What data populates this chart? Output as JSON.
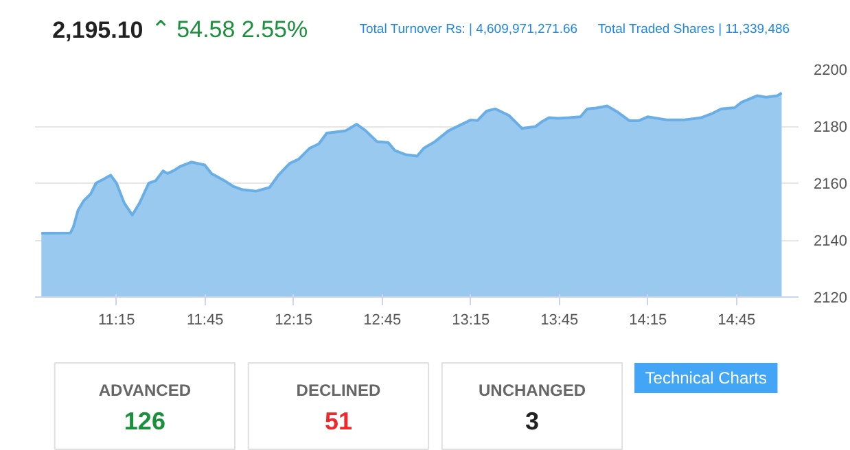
{
  "chart_data": [
    {
      "type": "area",
      "title": "2,195.10",
      "subtitle": "⌃ 54.58  2.55%",
      "annotations": [
        "Total Turnover Rs: | 4,609,971,271.66",
        "Total Traded Shares | 11,339,486"
      ],
      "x": [
        10.826,
        10.99,
        11.007,
        11.033,
        11.066,
        11.104,
        11.134,
        11.18,
        11.217,
        11.25,
        11.293,
        11.339,
        11.381,
        11.432,
        11.47,
        11.513,
        11.538,
        11.57,
        11.608,
        11.672,
        11.748,
        11.786,
        11.861,
        11.911,
        11.962,
        12.038,
        12.114,
        12.164,
        12.227,
        12.278,
        12.341,
        12.392,
        12.437,
        12.543,
        12.606,
        12.657,
        12.72,
        12.783,
        12.821,
        12.884,
        12.947,
        12.985,
        13.048,
        13.124,
        13.25,
        13.288,
        13.339,
        13.389,
        13.465,
        13.54,
        13.616,
        13.654,
        13.692,
        13.742,
        13.805,
        13.869,
        13.907,
        13.957,
        14.02,
        14.083,
        14.146,
        14.197,
        14.248,
        14.36,
        14.45,
        14.55,
        14.614,
        14.664,
        14.74,
        14.778,
        14.866,
        14.917,
        14.98,
        15.005
      ],
      "series": [
        {
          "color": "#99c9ee",
          "values": [
            2142.4,
            2142.5,
            2144.7,
            2150.5,
            2153.9,
            2156.2,
            2160.0,
            2161.5,
            2162.8,
            2160.0,
            2153.1,
            2148.8,
            2153.1,
            2160.0,
            2160.8,
            2164.3,
            2163.4,
            2164.3,
            2165.8,
            2167.4,
            2166.4,
            2163.4,
            2160.8,
            2158.8,
            2157.7,
            2157.2,
            2158.5,
            2162.8,
            2166.9,
            2168.4,
            2172.3,
            2173.8,
            2177.6,
            2178.4,
            2180.7,
            2178.4,
            2174.6,
            2174.3,
            2171.5,
            2170.0,
            2169.5,
            2172.3,
            2174.6,
            2178.4,
            2182.2,
            2182.0,
            2185.3,
            2186.1,
            2183.8,
            2179.2,
            2179.9,
            2181.7,
            2183.0,
            2182.8,
            2183.0,
            2183.3,
            2186.1,
            2186.4,
            2187.1,
            2184.8,
            2181.9,
            2181.9,
            2183.3,
            2182.2,
            2182.2,
            2183.0,
            2184.5,
            2186.1,
            2186.5,
            2188.4,
            2190.7,
            2190.2,
            2190.7,
            2191.7
          ]
        }
      ],
      "xlim": [
        10.79,
        15.1
      ],
      "ylim": [
        2120,
        2200
      ],
      "xticks": [
        {
          "value": 11.25,
          "label": "11:15"
        },
        {
          "value": 11.75,
          "label": "11:45"
        },
        {
          "value": 12.25,
          "label": "12:15"
        },
        {
          "value": 12.75,
          "label": "12:45"
        },
        {
          "value": 13.25,
          "label": "13:15"
        },
        {
          "value": 13.75,
          "label": "13:45"
        },
        {
          "value": 14.25,
          "label": "14:15"
        },
        {
          "value": 14.75,
          "label": "14:45"
        }
      ],
      "yticks": [
        2120,
        2140,
        2160,
        2180,
        2200
      ],
      "grid": "y",
      "marker": "none"
    },
    {
      "type": "other",
      "annotations": [
        "ADVANCED",
        "126",
        "DECLINED",
        "51",
        "UNCHANGED",
        "3",
        "Technical Charts"
      ]
    }
  ]
}
